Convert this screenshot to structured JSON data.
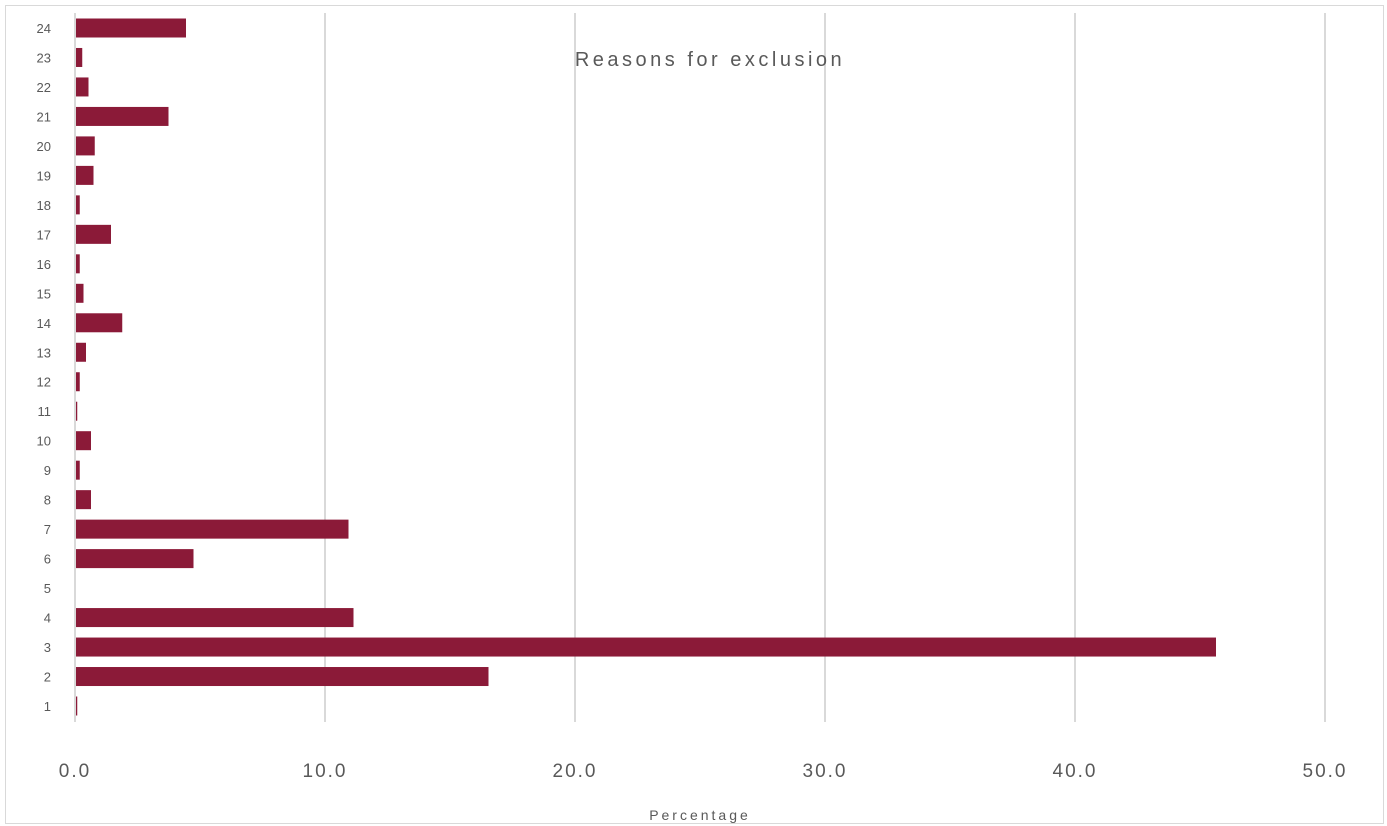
{
  "chart_data": {
    "type": "bar",
    "orientation": "horizontal",
    "title": "Reasons for exclusion",
    "xlabel": "Percentage",
    "ylabel": "",
    "xlim": [
      0,
      50
    ],
    "x_ticks": [
      "0.0",
      "10.0",
      "20.0",
      "30.0",
      "40.0",
      "50.0"
    ],
    "categories": [
      "1",
      "2",
      "3",
      "4",
      "5",
      "6",
      "7",
      "8",
      "9",
      "10",
      "11",
      "12",
      "13",
      "14",
      "15",
      "16",
      "17",
      "18",
      "19",
      "20",
      "21",
      "22",
      "23",
      "24"
    ],
    "values": [
      0.05,
      16.5,
      45.6,
      11.1,
      0.0,
      4.7,
      10.9,
      0.6,
      0.15,
      0.6,
      0.05,
      0.15,
      0.4,
      1.85,
      0.3,
      0.15,
      1.4,
      0.15,
      0.7,
      0.75,
      3.7,
      0.5,
      0.25,
      4.4
    ],
    "grid": "vertical",
    "legend": "none",
    "colors": {
      "bar": "#8b1a38",
      "grid": "#d9d9d9",
      "text": "#595959"
    }
  }
}
